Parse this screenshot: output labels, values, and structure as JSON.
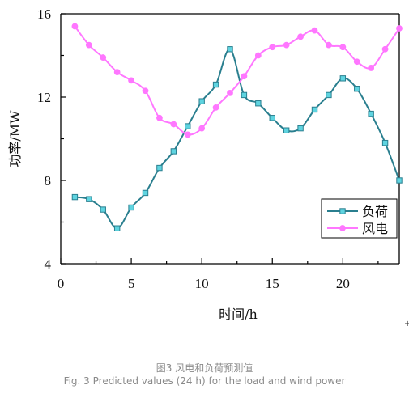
{
  "chart_data": {
    "type": "line",
    "xlabel": "时间/h",
    "ylabel": "功率/MW",
    "xlim": [
      0,
      24
    ],
    "ylim": [
      4,
      16
    ],
    "xticks": [
      0,
      5,
      10,
      15,
      20
    ],
    "yticks": [
      4,
      8,
      12,
      16
    ],
    "grid": false,
    "legend_position": "bottom-right",
    "x": [
      1,
      2,
      3,
      4,
      5,
      6,
      7,
      8,
      9,
      10,
      11,
      12,
      13,
      14,
      15,
      16,
      17,
      18,
      19,
      20,
      21,
      22,
      23,
      24
    ],
    "series": [
      {
        "name": "负荷",
        "color": "#2a7f8f",
        "marker": "square",
        "marker_fill": "#5fd4e0",
        "values": [
          7.2,
          7.1,
          6.6,
          5.7,
          6.7,
          7.4,
          8.6,
          9.4,
          10.6,
          11.8,
          12.6,
          14.3,
          12.1,
          11.7,
          11.0,
          10.4,
          10.5,
          11.4,
          12.1,
          12.9,
          12.4,
          11.2,
          9.8,
          8.0
        ]
      },
      {
        "name": "风电",
        "color": "#ff77ff",
        "marker": "circle",
        "marker_fill": "#ff77ff",
        "values": [
          15.4,
          14.5,
          13.9,
          13.2,
          12.8,
          12.3,
          11.0,
          10.7,
          10.2,
          10.5,
          11.5,
          12.2,
          13.0,
          14.0,
          14.4,
          14.5,
          14.9,
          15.2,
          14.5,
          14.4,
          13.7,
          13.4,
          14.3,
          15.3
        ]
      }
    ]
  },
  "caption": {
    "chinese": "图3 风电和负荷预测值",
    "english": "Fig. 3 Predicted values (24 h) for the load and wind power"
  },
  "stray_mark": "+"
}
